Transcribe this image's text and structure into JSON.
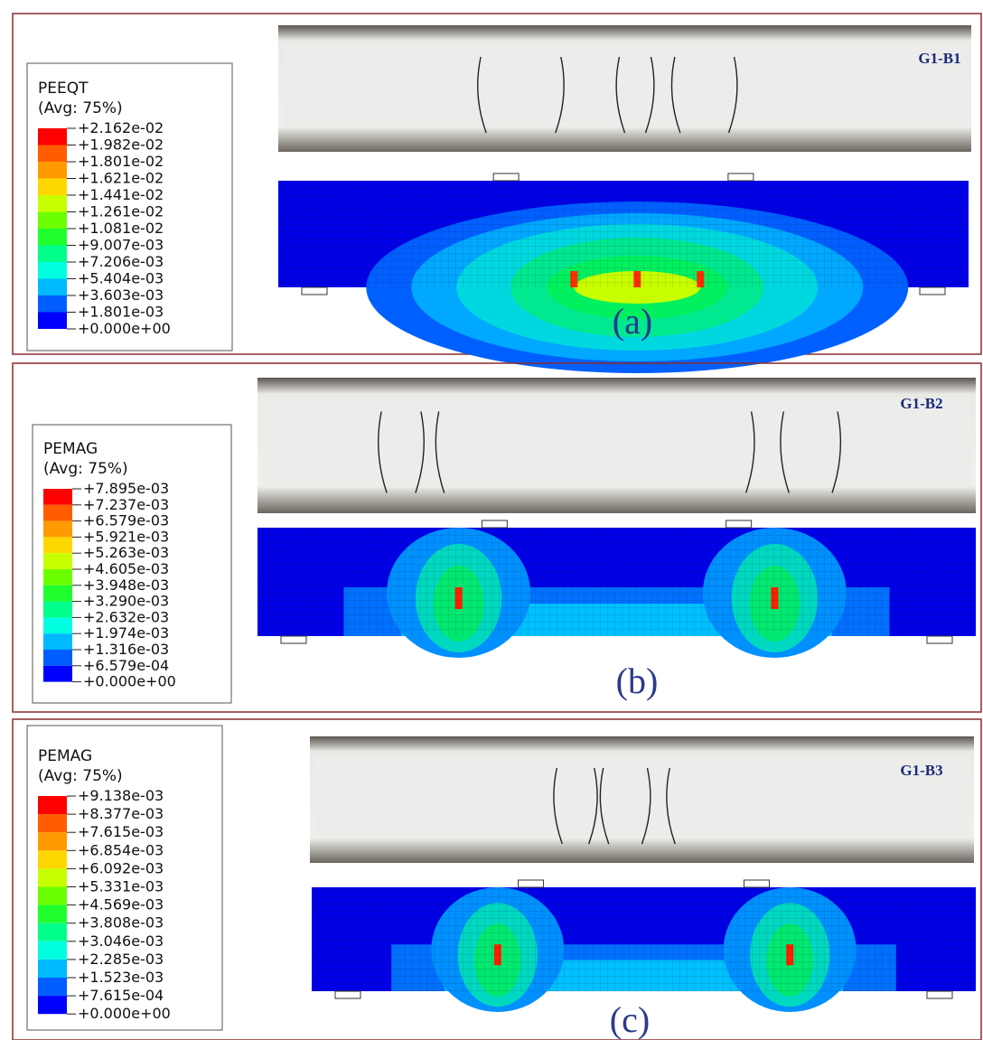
{
  "panels": [
    {
      "legend": {
        "title": "PEEQT",
        "subtitle": "(Avg: 75%)",
        "labels": [
          "+2.162e-02",
          "+1.982e-02",
          "+1.801e-02",
          "+1.621e-02",
          "+1.441e-02",
          "+1.261e-02",
          "+1.081e-02",
          "+9.007e-03",
          "+7.206e-03",
          "+5.404e-03",
          "+3.603e-03",
          "+1.801e-03",
          "+0.000e+00"
        ]
      },
      "photo": {
        "label": "G1-B1"
      },
      "caption": "(a)"
    },
    {
      "legend": {
        "title": "PEMAG",
        "subtitle": "(Avg: 75%)",
        "labels": [
          "+7.895e-03",
          "+7.237e-03",
          "+6.579e-03",
          "+5.921e-03",
          "+5.263e-03",
          "+4.605e-03",
          "+3.948e-03",
          "+3.290e-03",
          "+2.632e-03",
          "+1.974e-03",
          "+1.316e-03",
          "+6.579e-04",
          "+0.000e+00"
        ]
      },
      "photo": {
        "label": "G1-B2"
      },
      "caption": "(b)"
    },
    {
      "legend": {
        "title": "PEMAG",
        "subtitle": "(Avg: 75%)",
        "labels": [
          "+9.138e-03",
          "+8.377e-03",
          "+7.615e-03",
          "+6.854e-03",
          "+6.092e-03",
          "+5.331e-03",
          "+4.569e-03",
          "+3.808e-03",
          "+3.046e-03",
          "+2.285e-03",
          "+1.523e-03",
          "+7.615e-04",
          "+0.000e+00"
        ]
      },
      "photo": {
        "label": "G1-B3"
      },
      "caption": "(c)"
    }
  ]
}
